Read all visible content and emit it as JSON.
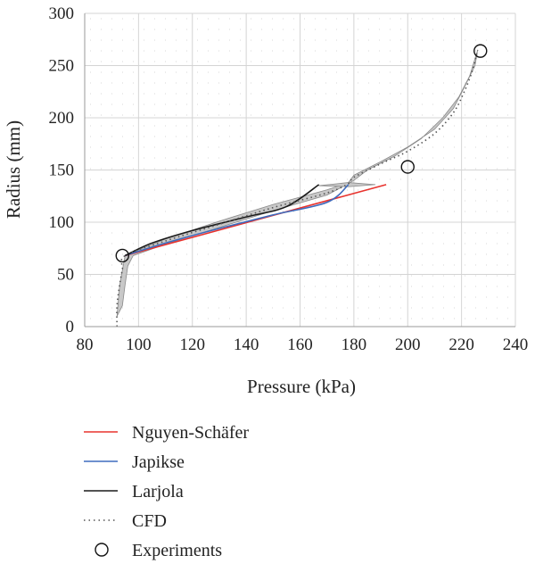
{
  "chart_data": {
    "type": "line",
    "xlabel": "Pressure (kPa)",
    "ylabel": "Radius (mm)",
    "xlim": [
      80,
      240
    ],
    "ylim": [
      0,
      300
    ],
    "x_ticks": [
      80,
      100,
      120,
      140,
      160,
      180,
      200,
      220,
      240
    ],
    "y_ticks": [
      0,
      50,
      100,
      150,
      200,
      250,
      300
    ],
    "grid": true,
    "legend_position": "below",
    "series": [
      {
        "name": "Nguyen-Schäfer",
        "color": "#e8332e",
        "style": "solid",
        "points": [
          [
            95,
            68
          ],
          [
            192,
            136
          ]
        ]
      },
      {
        "name": "Japikse",
        "color": "#3e6bbd",
        "style": "solid",
        "points": [
          [
            95,
            68
          ],
          [
            110,
            80
          ],
          [
            130,
            94
          ],
          [
            150,
            107
          ],
          [
            170,
            119
          ],
          [
            178,
            136
          ]
        ]
      },
      {
        "name": "Larjola",
        "color": "#1a1a1a",
        "style": "solid",
        "points": [
          [
            95,
            68
          ],
          [
            105,
            80
          ],
          [
            120,
            92
          ],
          [
            140,
            105
          ],
          [
            155,
            115
          ],
          [
            167,
            136
          ]
        ]
      },
      {
        "name": "CFD",
        "color": "#555555",
        "style": "dotted",
        "points": [
          [
            92,
            0
          ],
          [
            92,
            20
          ],
          [
            93,
            40
          ],
          [
            94,
            55
          ],
          [
            95,
            68
          ],
          [
            110,
            82
          ],
          [
            130,
            98
          ],
          [
            150,
            114
          ],
          [
            170,
            128
          ],
          [
            178,
            137
          ],
          [
            180,
            143
          ],
          [
            190,
            156
          ],
          [
            200,
            168
          ],
          [
            210,
            185
          ],
          [
            217,
            205
          ],
          [
            221,
            225
          ],
          [
            224,
            245
          ],
          [
            226,
            265
          ]
        ]
      }
    ],
    "band": {
      "color": "#c8c8c8",
      "upper": [
        [
          92,
          10
        ],
        [
          93,
          40
        ],
        [
          95,
          68
        ],
        [
          110,
          84
        ],
        [
          130,
          101
        ],
        [
          150,
          117
        ],
        [
          170,
          131
        ],
        [
          178,
          138
        ],
        [
          180,
          145
        ],
        [
          190,
          158
        ],
        [
          200,
          172
        ],
        [
          210,
          189
        ],
        [
          217,
          209
        ],
        [
          221,
          229
        ],
        [
          225,
          250
        ],
        [
          226,
          265
        ]
      ],
      "lower": [
        [
          226,
          265
        ],
        [
          223,
          240
        ],
        [
          219,
          220
        ],
        [
          213,
          200
        ],
        [
          205,
          180
        ],
        [
          195,
          163
        ],
        [
          185,
          150
        ],
        [
          180,
          140
        ],
        [
          178,
          137
        ],
        [
          170,
          126
        ],
        [
          150,
          111
        ],
        [
          130,
          95
        ],
        [
          110,
          79
        ],
        [
          98,
          68
        ],
        [
          96,
          58
        ],
        [
          95,
          40
        ],
        [
          94,
          20
        ],
        [
          92,
          10
        ]
      ],
      "lobe": [
        [
          167,
          135
        ],
        [
          178,
          138
        ],
        [
          188,
          136
        ],
        [
          178,
          134
        ],
        [
          167,
          135
        ]
      ]
    },
    "experiments": {
      "name": "Experiments",
      "points": [
        [
          94,
          68
        ],
        [
          200,
          153
        ],
        [
          227,
          264
        ]
      ]
    }
  }
}
